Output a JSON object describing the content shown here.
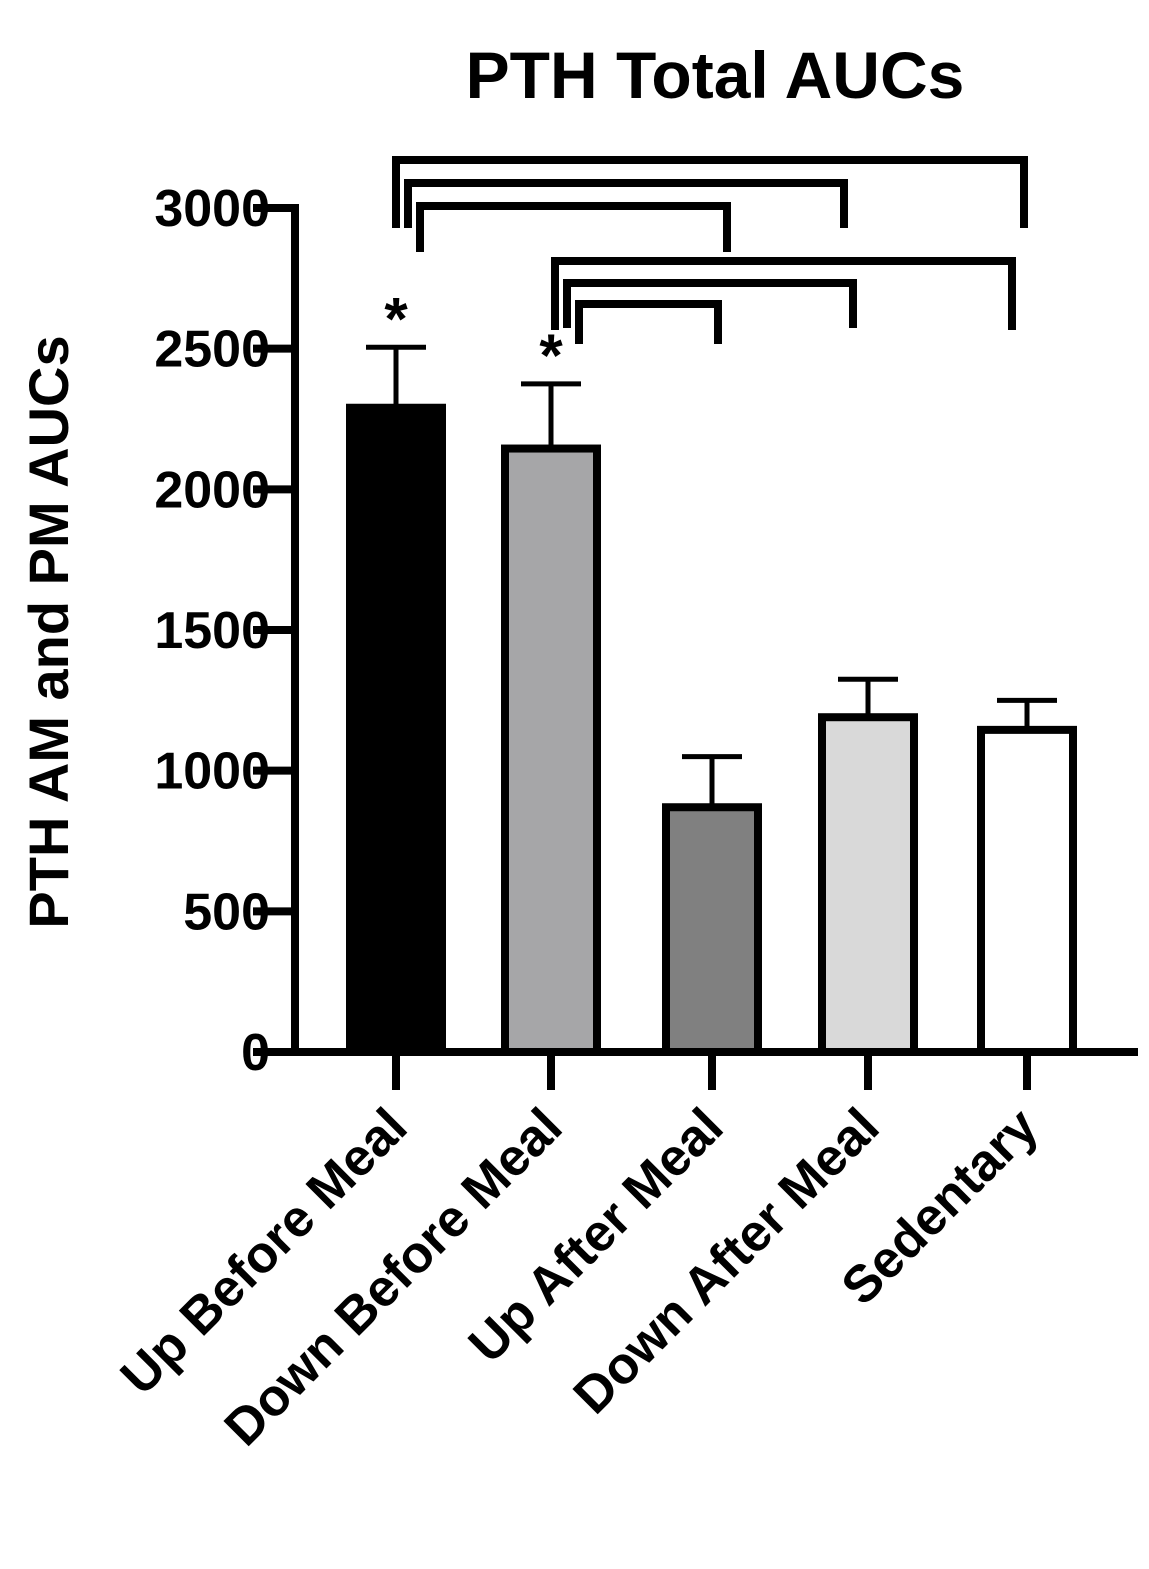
{
  "chart_data": {
    "type": "bar",
    "title": "PTH Total AUCs",
    "xlabel": "",
    "ylabel": "PTH AM and PM AUCs",
    "ylim": [
      0,
      3000
    ],
    "yticks": [
      0,
      500,
      1000,
      1500,
      2000,
      2500,
      3000
    ],
    "yticks_labels": [
      "0",
      "500",
      "1000",
      "1500",
      "2000",
      "2500",
      "3000"
    ],
    "grid": false,
    "legend": "none",
    "categories": [
      "Up Before Meal",
      "Down Before Meal",
      "Up After Meal",
      "Down After Meal",
      "Sedentary"
    ],
    "values": [
      2290,
      2145,
      870,
      1190,
      1145
    ],
    "errors": [
      215,
      230,
      180,
      135,
      105
    ],
    "colors": [
      "#000000",
      "#a6a6a8",
      "#808080",
      "#d9d9d9",
      "#ffffff"
    ],
    "significance_marks": [
      {
        "category": 0,
        "label": "*"
      },
      {
        "category": 1,
        "label": "*"
      }
    ],
    "comparison_brackets": [
      {
        "from": 0,
        "to": 4
      },
      {
        "from": 0,
        "to": 3
      },
      {
        "from": 0,
        "to": 2
      },
      {
        "from": 1,
        "to": 4
      },
      {
        "from": 1,
        "to": 3
      },
      {
        "from": 1,
        "to": 2
      }
    ]
  }
}
